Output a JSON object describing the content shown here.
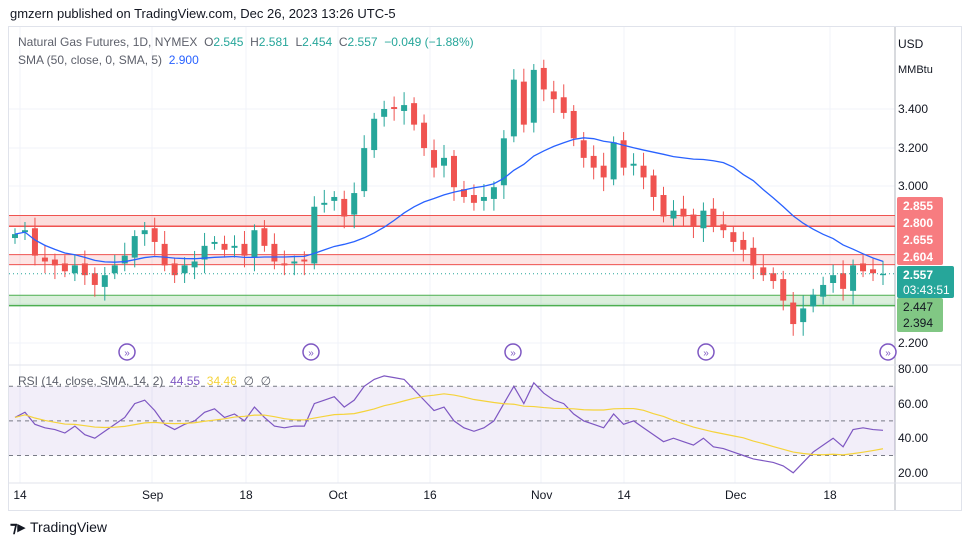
{
  "publisher": "gmzern published on TradingView.com, Dec 26, 2023 13:26 UTC-5",
  "legend": {
    "symbol": "Natural Gas Futures, 1D, NYMEX",
    "o_label": "O",
    "o": "2.545",
    "h_label": "H",
    "h": "2.581",
    "l_label": "L",
    "l": "2.454",
    "c_label": "C",
    "c": "2.557",
    "change": "−0.049 (−1.88%)",
    "sma_label": "SMA (50, close, 0, SMA, 5)",
    "sma": "2.900"
  },
  "rsi_legend": {
    "label": "RSI (14, close, SMA, 14, 2)",
    "rsi": "44.55",
    "rsi_ma": "34.46",
    "n1": "∅",
    "n2": "∅"
  },
  "currency": "USD",
  "unit": "MMBtu",
  "price_ticks": [
    "3.400",
    "3.200",
    "3.000",
    "2.200"
  ],
  "rsi_ticks": [
    "80.00",
    "60.00",
    "40.00",
    "20.00"
  ],
  "x_ticks": [
    "14",
    "Sep",
    "18",
    "Oct",
    "16",
    "Nov",
    "14",
    "Dec",
    "18"
  ],
  "price_tags": {
    "red": [
      "2.855",
      "2.800",
      "2.655",
      "2.604"
    ],
    "current": "2.557",
    "countdown": "03:43:51",
    "green": [
      "2.447",
      "2.394"
    ]
  },
  "colors": {
    "up": "#26a69a",
    "down": "#ef5350",
    "sma": "#2962ff",
    "rsi": "#7e57c2",
    "rsi_ma": "#f5d33b"
  },
  "brand": "TradingView",
  "chart_data": {
    "type": "candlestick",
    "closes": [
      2.76,
      2.78,
      2.65,
      2.62,
      2.6,
      2.57,
      2.6,
      2.55,
      2.5,
      2.55,
      2.6,
      2.65,
      2.75,
      2.78,
      2.72,
      2.6,
      2.55,
      2.6,
      2.62,
      2.7,
      2.72,
      2.68,
      2.7,
      2.65,
      2.78,
      2.7,
      2.62,
      2.6,
      2.62,
      2.62,
      2.9,
      2.92,
      2.95,
      2.85,
      2.97,
      3.2,
      3.35,
      3.4,
      3.4,
      3.42,
      3.32,
      3.2,
      3.1,
      3.15,
      3.0,
      2.95,
      2.92,
      2.95,
      3.0,
      3.25,
      3.55,
      3.32,
      3.6,
      3.5,
      3.45,
      3.38,
      3.25,
      3.15,
      3.1,
      3.05,
      3.23,
      3.1,
      3.12,
      3.05,
      2.95,
      2.85,
      2.88,
      2.85,
      2.8,
      2.88,
      2.8,
      2.78,
      2.72,
      2.68,
      2.6,
      2.55,
      2.52,
      2.42,
      2.3,
      2.38,
      2.45,
      2.5,
      2.55,
      2.48,
      2.6,
      2.57,
      2.56,
      2.557
    ],
    "rsi": [
      52,
      55,
      48,
      46,
      45,
      43,
      47,
      42,
      40,
      44,
      48,
      52,
      60,
      62,
      56,
      48,
      45,
      48,
      50,
      55,
      57,
      52,
      54,
      50,
      58,
      52,
      47,
      46,
      47,
      47,
      60,
      62,
      64,
      58,
      62,
      70,
      74,
      76,
      75,
      74,
      68,
      62,
      56,
      58,
      50,
      46,
      44,
      46,
      50,
      60,
      70,
      60,
      72,
      66,
      62,
      60,
      54,
      50,
      48,
      46,
      54,
      48,
      50,
      46,
      42,
      38,
      40,
      38,
      36,
      40,
      35,
      34,
      32,
      30,
      28,
      27,
      26,
      24,
      20,
      26,
      32,
      36,
      40,
      35,
      45,
      46,
      45,
      44.55
    ],
    "price_range": [
      2.1,
      3.7
    ],
    "rsi_range": [
      15,
      85
    ],
    "levels_red": [
      2.855,
      2.8,
      2.655,
      2.604
    ],
    "levels_green": [
      2.447,
      2.394
    ],
    "rsi_bands": [
      70,
      50,
      30
    ]
  }
}
